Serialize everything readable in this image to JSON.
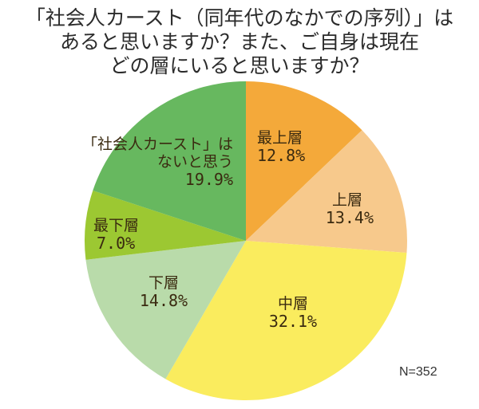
{
  "title": {
    "line1": "「社会人カースト（同年代のなかでの序列）」は",
    "line2": "あると思いますか？また、ご自身は現在",
    "line3": "どの層にいると思いますか？"
  },
  "sample_size": "N=352",
  "slices": [
    {
      "label": "最上層",
      "value": 12.8,
      "pct_text": "12.8%",
      "color": "#F4A93A"
    },
    {
      "label": "上層",
      "value": 13.4,
      "pct_text": "13.4%",
      "color": "#F7C98C"
    },
    {
      "label": "中層",
      "value": 32.1,
      "pct_text": "32.1%",
      "color": "#FAEC5E"
    },
    {
      "label": "下層",
      "value": 14.8,
      "pct_text": "14.8%",
      "color": "#B9DBAA"
    },
    {
      "label": "最下層",
      "value": 7.0,
      "pct_text": "7.0%",
      "color": "#9CC832"
    },
    {
      "label": "「社会人カースト」はないと思う",
      "label_line1": "「社会人カースト」は",
      "label_line2": "ないと思う",
      "value": 19.9,
      "pct_text": "19.9%",
      "color": "#67B85F"
    }
  ],
  "chart_data": {
    "type": "pie",
    "title": "「社会人カースト（同年代のなかでの序列）」はあると思いますか？また、ご自身は現在どの層にいると思いますか？",
    "categories": [
      "最上層",
      "上層",
      "中層",
      "下層",
      "最下層",
      "「社会人カースト」はないと思う"
    ],
    "values": [
      12.8,
      13.4,
      32.1,
      14.8,
      7.0,
      19.9
    ],
    "unit": "%",
    "annotations": [
      "N=352"
    ],
    "start_angle": "12 o'clock, clockwise"
  }
}
